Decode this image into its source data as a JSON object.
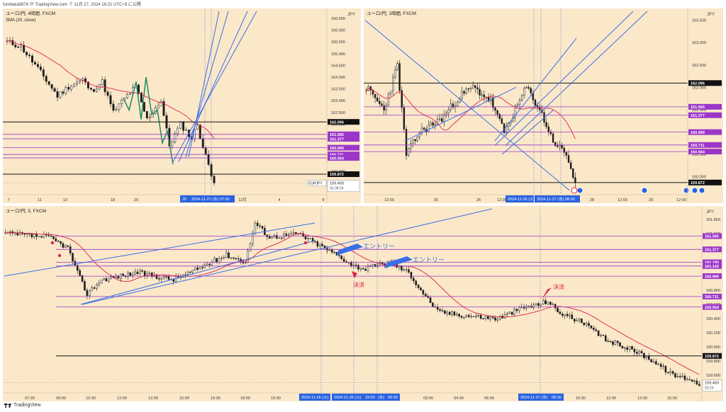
{
  "header": {
    "text": "fumitaka5874 が TradingView.com で 11月 27, 2024 16:21 UTC+9 に公開"
  },
  "footer": {
    "brand": "TradingView"
  },
  "colors": {
    "bg": "#fbe8c9",
    "up": "#ffffff",
    "down": "#1a1a1a",
    "sma": "#e0204a",
    "trend": "#3a6ee8",
    "purple": "#9b36c9",
    "black_line": "#111111",
    "purple_label": "#9b36c9",
    "date_label": "#2a62e0"
  },
  "panels": [
    {
      "id": "p1",
      "symbol": "ユーロ/円, 4時間, FXCM",
      "indicator": "SMA (20, close)",
      "currency": "JPY",
      "y_ticks": [
        "166.500",
        "166.000",
        "165.500",
        "165.000",
        "164.500",
        "164.000",
        "163.500",
        "163.000",
        "162.500",
        "162.000",
        "161.500",
        "161.000",
        "160.500",
        "160.000",
        "159.500",
        "159.000"
      ],
      "y_min": 159.0,
      "y_max": 166.8,
      "x_labels": [
        "7",
        "11",
        "13",
        "18",
        "20",
        "12月",
        "4",
        "9"
      ],
      "date_tags": [
        "20",
        "2024-11-27 (水) 07:00"
      ],
      "price_labels": [
        {
          "text": "162.096",
          "value": 162.096,
          "kind": "black"
        },
        {
          "text": "161.565",
          "value": 161.565,
          "kind": "purple"
        },
        {
          "text": "161.377",
          "value": 161.377,
          "kind": "purple"
        },
        {
          "text": "160.999",
          "value": 160.999,
          "kind": "purple"
        },
        {
          "text": "160.711",
          "value": 160.711,
          "kind": "purple"
        },
        {
          "text": "160.564",
          "value": 160.564,
          "kind": "purple"
        },
        {
          "text": "159.872",
          "value": 159.872,
          "kind": "black"
        }
      ],
      "current": {
        "symbol": "EURJPY",
        "price": "159.493",
        "timer": "02:38:24",
        "value": 159.493
      }
    },
    {
      "id": "p2",
      "symbol": "ユーロ/円, 1時間, FXCM",
      "currency": "JPY",
      "y_ticks": [
        "163.500",
        "163.000",
        "162.500",
        "162.000",
        "161.500",
        "161.000",
        "160.500",
        "160.000",
        "159.500"
      ],
      "y_min": 159.6,
      "y_max": 163.7,
      "x_labels": [
        "12:00",
        "25",
        "26",
        "12:00",
        "28",
        "12:00",
        "29",
        "12:00"
      ],
      "date_tags": [
        "2024-11-26 (火)",
        "2024-11-27 (水) 08:00"
      ],
      "price_labels": [
        {
          "text": "162.096",
          "value": 162.096,
          "kind": "black"
        },
        {
          "text": "161.565",
          "value": 161.565,
          "kind": "purple"
        },
        {
          "text": "161.377",
          "value": 161.377,
          "kind": "purple"
        },
        {
          "text": "160.999",
          "value": 160.999,
          "kind": "purple"
        },
        {
          "text": "160.711",
          "value": 160.711,
          "kind": "purple"
        },
        {
          "text": "160.564",
          "value": 160.564,
          "kind": "purple"
        },
        {
          "text": "159.872",
          "value": 159.872,
          "kind": "black"
        }
      ]
    },
    {
      "id": "p3",
      "symbol": "ユーロ/円, 5, FXCM",
      "currency": "JPY",
      "y_ticks": [
        "161.800",
        "161.600",
        "161.400",
        "161.200",
        "161.000",
        "160.800",
        "160.600",
        "160.400",
        "160.200",
        "160.000",
        "159.800",
        "159.600",
        "159.400"
      ],
      "y_min": 159.35,
      "y_max": 161.95,
      "x_labels": [
        "07:30",
        "09:00",
        "10:30",
        "12:00",
        "13:30",
        "15:00",
        "16:30",
        "18:00",
        "19:30",
        "03:00",
        "04:30",
        "06:00",
        "10:30",
        "12:00",
        "13:30",
        "15:00"
      ],
      "date_tags": [
        "2024-11-26 (火)",
        "2024-11-26 (火)",
        "23:20",
        "(水)",
        "00:30",
        "2024-11-27 (水)",
        "08:30"
      ],
      "price_labels": [
        {
          "text": "161.565",
          "value": 161.565,
          "kind": "purple"
        },
        {
          "text": "161.377",
          "value": 161.377,
          "kind": "purple"
        },
        {
          "text": "161.195",
          "value": 161.195,
          "kind": "purple"
        },
        {
          "text": "161.142",
          "value": 161.142,
          "kind": "purple"
        },
        {
          "text": "160.999",
          "value": 160.999,
          "kind": "purple"
        },
        {
          "text": "160.711",
          "value": 160.711,
          "kind": "purple"
        },
        {
          "text": "160.564",
          "value": 160.564,
          "kind": "purple"
        },
        {
          "text": "159.872",
          "value": 159.872,
          "kind": "black"
        }
      ],
      "current": {
        "price": "159.493",
        "timer": "03:24",
        "value": 159.493
      },
      "annotations": {
        "entry1": "エントリー",
        "entry2": "エントリー",
        "settle1": "決済",
        "settle2": "決済"
      }
    }
  ],
  "chart_data": [
    {
      "type": "candlestick",
      "title": "ユーロ/円, 4時間, FXCM",
      "series": [
        {
          "name": "SMA (20, close)"
        }
      ],
      "horizontal_levels": [
        162.096,
        161.565,
        161.377,
        160.999,
        160.711,
        160.564,
        159.872
      ],
      "last_price": 159.493,
      "ylim": [
        159.0,
        166.8
      ]
    },
    {
      "type": "candlestick",
      "title": "ユーロ/円, 1時間, FXCM",
      "horizontal_levels": [
        162.096,
        161.565,
        161.377,
        160.999,
        160.711,
        160.564,
        159.872
      ],
      "ylim": [
        159.6,
        163.7
      ]
    },
    {
      "type": "candlestick",
      "title": "ユーロ/円, 5, FXCM",
      "horizontal_levels": [
        161.565,
        161.377,
        161.195,
        161.142,
        160.999,
        160.711,
        160.564,
        159.872
      ],
      "last_price": 159.493,
      "ylim": [
        159.35,
        161.95
      ]
    }
  ]
}
